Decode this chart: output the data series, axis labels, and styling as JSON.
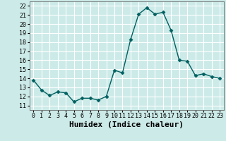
{
  "x": [
    0,
    1,
    2,
    3,
    4,
    5,
    6,
    7,
    8,
    9,
    10,
    11,
    12,
    13,
    14,
    15,
    16,
    17,
    18,
    19,
    20,
    21,
    22,
    23
  ],
  "y": [
    13.8,
    12.7,
    12.1,
    12.5,
    12.4,
    11.4,
    11.8,
    11.8,
    11.6,
    12.0,
    14.9,
    14.6,
    18.3,
    21.1,
    21.8,
    21.1,
    21.3,
    19.3,
    16.0,
    15.9,
    14.3,
    14.5,
    14.2,
    14.0
  ],
  "line_color": "#006060",
  "marker": "D",
  "marker_size": 2.5,
  "background_color": "#cceae8",
  "grid_color": "#ffffff",
  "xlabel": "Humidex (Indice chaleur)",
  "xlim": [
    -0.5,
    23.5
  ],
  "ylim": [
    10.5,
    22.5
  ],
  "yticks": [
    11,
    12,
    13,
    14,
    15,
    16,
    17,
    18,
    19,
    20,
    21,
    22
  ],
  "xticks": [
    0,
    1,
    2,
    3,
    4,
    5,
    6,
    7,
    8,
    9,
    10,
    11,
    12,
    13,
    14,
    15,
    16,
    17,
    18,
    19,
    20,
    21,
    22,
    23
  ],
  "tick_fontsize": 6,
  "xlabel_fontsize": 8,
  "line_width": 1.0
}
